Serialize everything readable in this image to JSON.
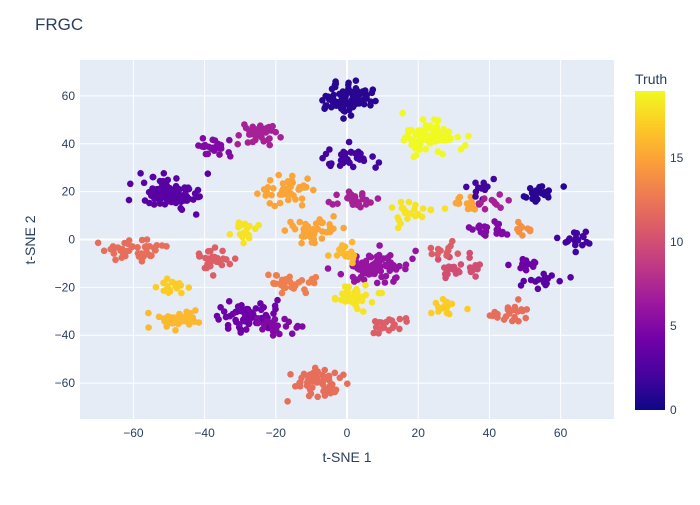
{
  "chart_data": {
    "type": "scatter",
    "title": "FRGC",
    "xlabel": "t-SNE 1",
    "ylabel": "t-SNE 2",
    "xlim": [
      -75,
      75
    ],
    "ylim": [
      -75,
      75
    ],
    "xticks": [
      -60,
      -40,
      -20,
      0,
      20,
      40,
      60
    ],
    "yticks": [
      -60,
      -40,
      -20,
      0,
      20,
      40,
      60
    ],
    "grid": true,
    "colorbar": {
      "title": "Truth",
      "min": 0,
      "max": 19,
      "ticks": [
        0,
        5,
        10,
        15
      ],
      "colorscale": "plasma"
    },
    "clusters": [
      {
        "x": 0,
        "y": 59,
        "truth": 1,
        "n": 80
      },
      {
        "x": 23,
        "y": 43,
        "truth": 19,
        "n": 80
      },
      {
        "x": -24,
        "y": 44,
        "truth": 7,
        "n": 40
      },
      {
        "x": -38,
        "y": 39,
        "truth": 5,
        "n": 25
      },
      {
        "x": -50,
        "y": 20,
        "truth": 3,
        "n": 90
      },
      {
        "x": -17,
        "y": 21,
        "truth": 15,
        "n": 45
      },
      {
        "x": 0,
        "y": 34,
        "truth": 2,
        "n": 35
      },
      {
        "x": 2,
        "y": 17,
        "truth": 7,
        "n": 25
      },
      {
        "x": -60,
        "y": -4,
        "truth": 12,
        "n": 45
      },
      {
        "x": -38,
        "y": -9,
        "truth": 11,
        "n": 30
      },
      {
        "x": -29,
        "y": 3,
        "truth": 18,
        "n": 18
      },
      {
        "x": -9,
        "y": 3,
        "truth": 15,
        "n": 40
      },
      {
        "x": -48,
        "y": -20,
        "truth": 17,
        "n": 18
      },
      {
        "x": -47,
        "y": -34,
        "truth": 16,
        "n": 40
      },
      {
        "x": -28,
        "y": -32,
        "truth": 4,
        "n": 60
      },
      {
        "x": -20,
        "y": -36,
        "truth": 5,
        "n": 22
      },
      {
        "x": -8,
        "y": -60,
        "truth": 12,
        "n": 60
      },
      {
        "x": 18,
        "y": 11,
        "truth": 18,
        "n": 25
      },
      {
        "x": 33,
        "y": 15,
        "truth": 15,
        "n": 15
      },
      {
        "x": 38,
        "y": 22,
        "truth": 2,
        "n": 12
      },
      {
        "x": 53,
        "y": 19,
        "truth": 1,
        "n": 22
      },
      {
        "x": 64,
        "y": -1,
        "truth": 2,
        "n": 18
      },
      {
        "x": 56,
        "y": -17,
        "truth": 3,
        "n": 18
      },
      {
        "x": 46,
        "y": -30,
        "truth": 12,
        "n": 22
      },
      {
        "x": 32,
        "y": -12,
        "truth": 10,
        "n": 25
      },
      {
        "x": 27,
        "y": -29,
        "truth": 17,
        "n": 15
      },
      {
        "x": 41,
        "y": 15,
        "truth": 7,
        "n": 12
      },
      {
        "x": 40,
        "y": 4,
        "truth": 5,
        "n": 20
      },
      {
        "x": 50,
        "y": -10,
        "truth": 4,
        "n": 14
      },
      {
        "x": 50,
        "y": 5,
        "truth": 14,
        "n": 10
      },
      {
        "x": 8,
        "y": -12,
        "truth": 6,
        "n": 80
      },
      {
        "x": 3,
        "y": -24,
        "truth": 18,
        "n": 40
      },
      {
        "x": 12,
        "y": -35,
        "truth": 11,
        "n": 20
      },
      {
        "x": -15,
        "y": -18,
        "truth": 13,
        "n": 30
      },
      {
        "x": 0,
        "y": -5,
        "truth": 16,
        "n": 15
      },
      {
        "x": 28,
        "y": -4,
        "truth": 11,
        "n": 12
      }
    ]
  }
}
